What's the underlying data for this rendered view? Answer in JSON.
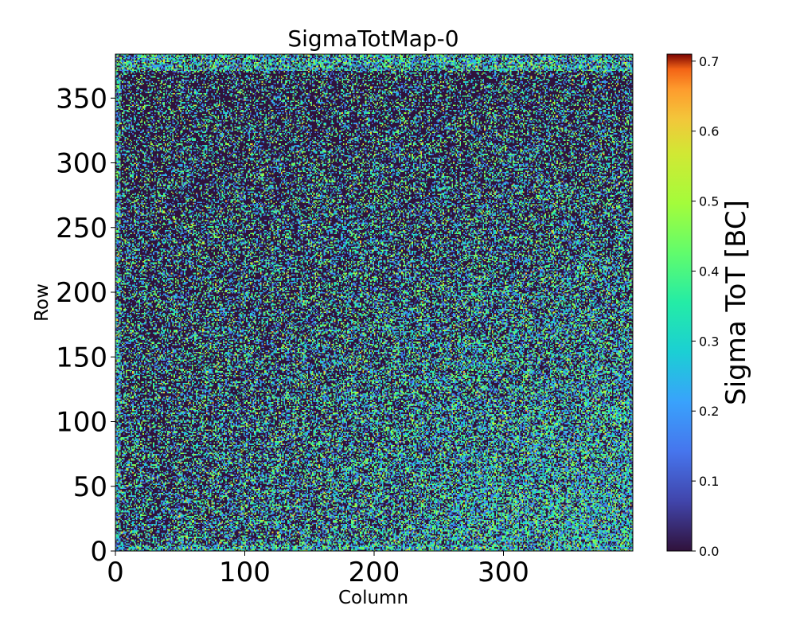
{
  "chart_data": {
    "type": "heatmap",
    "title": "SigmaTotMap-0",
    "xlabel": "Column",
    "ylabel": "Row",
    "xlim": [
      0,
      400
    ],
    "ylim": [
      0,
      384
    ],
    "x_ticks": [
      0,
      100,
      200,
      300
    ],
    "y_ticks": [
      0,
      50,
      100,
      150,
      200,
      250,
      300,
      350
    ],
    "x_tick_labels": [
      "0",
      "100",
      "200",
      "300"
    ],
    "y_tick_labels": [
      "0",
      "50",
      "100",
      "150",
      "200",
      "250",
      "300",
      "350"
    ],
    "colorbar": {
      "label": "Sigma ToT [BC]",
      "range": [
        0.0,
        0.71
      ],
      "ticks": [
        0.0,
        0.1,
        0.2,
        0.3,
        0.4,
        0.5,
        0.6,
        0.7
      ],
      "tick_labels": [
        "0.0",
        "0.1",
        "0.2",
        "0.3",
        "0.4",
        "0.5",
        "0.6",
        "0.7"
      ],
      "colormap": "turbo"
    },
    "grid": false,
    "description_of_values": "Noisy per-pixel sigma ToT map over 400 columns x 384 rows; majority of pixels near 0.0 (dark), with higher values (0.2-0.5) more frequent toward the lower-right region and along the top rows."
  }
}
